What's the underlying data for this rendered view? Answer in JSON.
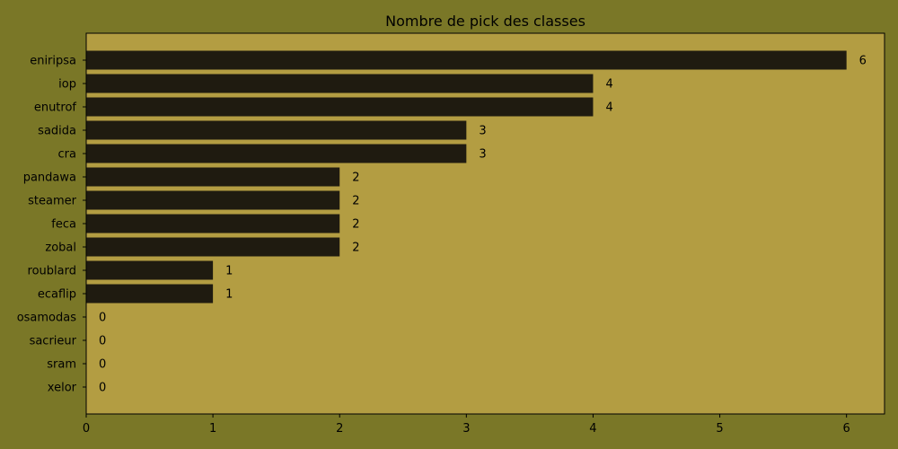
{
  "colors": {
    "figure_background": "#7a7727",
    "plot_background": "#b39d42",
    "bar": "#1f1b10",
    "axis": "#000000"
  },
  "chart_data": {
    "type": "bar",
    "orientation": "horizontal",
    "title": "Nombre de pick des classes",
    "xlabel": "",
    "ylabel": "",
    "categories": [
      "eniripsa",
      "iop",
      "enutrof",
      "sadida",
      "cra",
      "pandawa",
      "steamer",
      "feca",
      "zobal",
      "roublard",
      "ecaflip",
      "osamodas",
      "sacrieur",
      "sram",
      "xelor"
    ],
    "values": [
      6,
      4,
      4,
      3,
      3,
      2,
      2,
      2,
      2,
      1,
      1,
      0,
      0,
      0,
      0
    ],
    "data_labels": [
      "6",
      "4",
      "4",
      "3",
      "3",
      "2",
      "2",
      "2",
      "2",
      "1",
      "1",
      "0",
      "0",
      "0",
      "0"
    ],
    "xlim": [
      0,
      6.3
    ],
    "xticks": [
      0,
      1,
      2,
      3,
      4,
      5,
      6
    ],
    "xtick_labels": [
      "0",
      "1",
      "2",
      "3",
      "4",
      "5",
      "6"
    ],
    "grid": false,
    "legend": "none"
  }
}
